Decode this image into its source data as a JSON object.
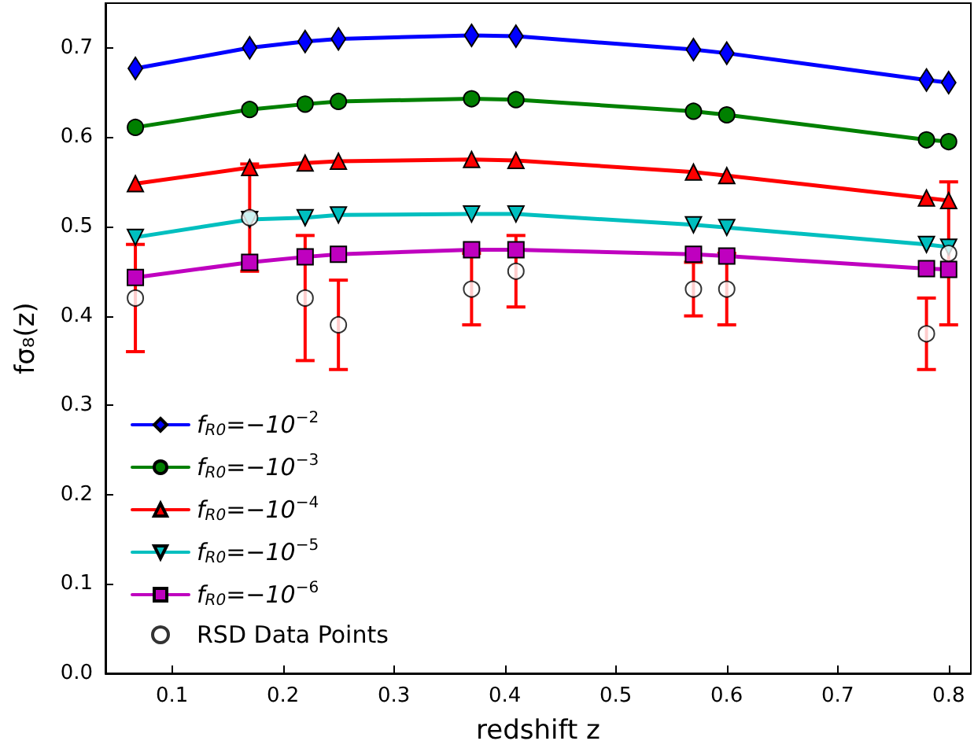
{
  "chart_data": {
    "type": "line",
    "xlabel": "redshift z",
    "ylabel": "fσ₈(z)",
    "x": [
      0.067,
      0.17,
      0.22,
      0.25,
      0.37,
      0.41,
      0.57,
      0.6,
      0.78,
      0.8
    ],
    "series": [
      {
        "name": "f$_{R0}$=−10$^{−2}$",
        "color": "#0000ff",
        "marker": "diamond",
        "values": [
          0.677,
          0.7,
          0.707,
          0.71,
          0.714,
          0.713,
          0.698,
          0.694,
          0.664,
          0.661
        ]
      },
      {
        "name": "f$_{R0}$=−10$^{−3}$",
        "color": "#008000",
        "marker": "circle",
        "values": [
          0.611,
          0.631,
          0.637,
          0.64,
          0.643,
          0.642,
          0.629,
          0.625,
          0.597,
          0.595
        ]
      },
      {
        "name": "f$_{R0}$=−10$^{−4}$",
        "color": "#ff0000",
        "marker": "triangle",
        "values": [
          0.548,
          0.566,
          0.571,
          0.573,
          0.575,
          0.574,
          0.561,
          0.557,
          0.532,
          0.529
        ]
      },
      {
        "name": "f$_{R0}$=−10$^{−5}$",
        "color": "#00bfbf",
        "marker": "triangle_down",
        "values": [
          0.488,
          0.508,
          0.51,
          0.513,
          0.514,
          0.514,
          0.502,
          0.499,
          0.48,
          0.477
        ]
      },
      {
        "name": "f$_{R0}$=−10$^{−6}$",
        "color": "#bf00bf",
        "marker": "square",
        "values": [
          0.443,
          0.46,
          0.466,
          0.469,
          0.474,
          0.474,
          0.469,
          0.467,
          0.453,
          0.452
        ]
      },
      {
        "name": "RSD Data Points",
        "type": "scatter",
        "color": "#ffffff",
        "marker": "circle",
        "values": [
          0.42,
          0.51,
          0.42,
          0.39,
          0.43,
          0.45,
          0.43,
          0.43,
          0.38,
          0.47
        ],
        "errors": [
          0.06,
          0.06,
          0.07,
          0.05,
          0.04,
          0.04,
          0.03,
          0.04,
          0.04,
          0.08
        ]
      }
    ],
    "xlim": [
      0.04,
      0.82
    ],
    "xticks": [
      0.1,
      0.2,
      0.3,
      0.4,
      0.5,
      0.6,
      0.7,
      0.8
    ],
    "ylim": [
      0,
      0.75
    ],
    "yticks": [
      {
        "value": 0,
        "label": "0.0"
      },
      0.1,
      0.2,
      0.3,
      0.4,
      0.5,
      0.6,
      0.7
    ],
    "grid": false,
    "legend": "bottom left",
    "line_style": "solid"
  }
}
